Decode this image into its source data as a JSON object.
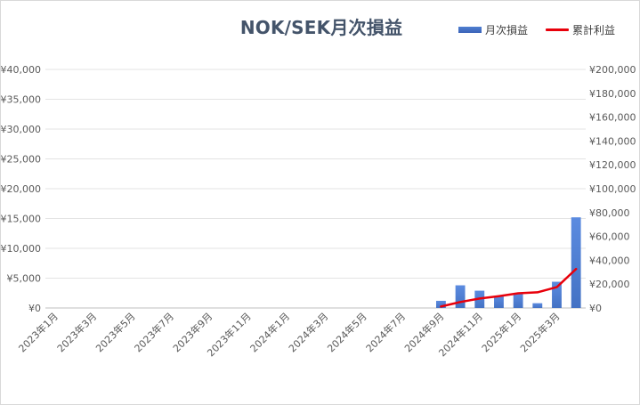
{
  "chart_data": {
    "type": "bar",
    "title": "NOK/SEK月次損益",
    "xlabel": "",
    "ylabel": "",
    "legend_position": "top-right",
    "grid": true,
    "x_tick_labels": [
      "2023年1月",
      "2023年3月",
      "2023年5月",
      "2023年7月",
      "2023年9月",
      "2023年11月",
      "2024年1月",
      "2024年3月",
      "2024年5月",
      "2024年7月",
      "2024年9月",
      "2024年11月",
      "2025年1月",
      "2025年3月"
    ],
    "y_left": {
      "lim": [
        0,
        40000
      ],
      "ticks": [
        "¥0",
        "¥5,000",
        "¥10,000",
        "¥15,000",
        "¥20,000",
        "¥25,000",
        "¥30,000",
        "¥35,000",
        "¥40,000"
      ]
    },
    "y_right": {
      "lim": [
        0,
        200000
      ],
      "ticks": [
        "¥0",
        "¥20,000",
        "¥40,000",
        "¥60,000",
        "¥80,000",
        "¥100,000",
        "¥120,000",
        "¥140,000",
        "¥160,000",
        "¥180,000",
        "¥200,000"
      ]
    },
    "categories": [
      "2023年1月",
      "2023年2月",
      "2023年3月",
      "2023年4月",
      "2023年5月",
      "2023年6月",
      "2023年7月",
      "2023年8月",
      "2023年9月",
      "2023年10月",
      "2023年11月",
      "2023年12月",
      "2024年1月",
      "2024年2月",
      "2024年3月",
      "2024年4月",
      "2024年5月",
      "2024年6月",
      "2024年7月",
      "2024年8月",
      "2024年9月",
      "2024年10月",
      "2024年11月",
      "2024年12月",
      "2025年1月",
      "2025年2月",
      "2025年3月",
      "2025年4月"
    ],
    "series": [
      {
        "name": "月次損益",
        "type": "bar",
        "axis": "left",
        "color": "#4472c4",
        "values": [
          null,
          null,
          null,
          null,
          null,
          null,
          null,
          null,
          null,
          null,
          null,
          null,
          null,
          null,
          null,
          null,
          null,
          null,
          null,
          null,
          1200,
          3800,
          2900,
          2000,
          2400,
          800,
          4400,
          15200
        ]
      },
      {
        "name": "累計利益",
        "type": "line",
        "axis": "right",
        "color": "#e8000b",
        "values": [
          null,
          null,
          null,
          null,
          null,
          null,
          null,
          null,
          null,
          null,
          null,
          null,
          null,
          null,
          null,
          null,
          null,
          null,
          null,
          null,
          1200,
          5000,
          7900,
          9900,
          12300,
          13100,
          17500,
          32700
        ]
      }
    ]
  }
}
